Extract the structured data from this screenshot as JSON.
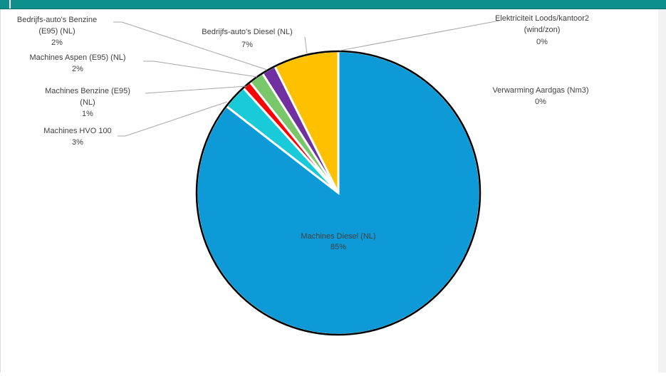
{
  "chart_data": {
    "type": "pie",
    "title": "",
    "slices": [
      {
        "label": "Machines Diesel (NL)",
        "pct_label": "85%",
        "value": 85.5,
        "color": "#0e9ad7"
      },
      {
        "label": "Machines HVO 100",
        "pct_label": "3%",
        "value": 2.8,
        "color": "#19cbd8"
      },
      {
        "label": "Machines Benzine (E95) (NL)",
        "pct_label": "1%",
        "value": 1.0,
        "color": "#ff0000"
      },
      {
        "label": "Machines Aspen (E95) (NL)",
        "pct_label": "2%",
        "value": 1.7,
        "color": "#7ac66a"
      },
      {
        "label": "Bedrijfs-auto's Benzine (E95) (NL)",
        "pct_label": "2%",
        "value": 1.6,
        "color": "#7030a0"
      },
      {
        "label": "Bedrijfs-auto's Diesel (NL)",
        "pct_label": "7%",
        "value": 7.4,
        "color": "#ffc000"
      },
      {
        "label": "Elektriciteit Loods/kantoor2 (wind/zon)",
        "pct_label": "0%",
        "value": 0.0,
        "color": "#a5a5a5"
      },
      {
        "label": "Verwarming  Aardgas (Nm3)",
        "pct_label": "0%",
        "value": 0.0,
        "color": "#5b9bd5"
      }
    ]
  }
}
